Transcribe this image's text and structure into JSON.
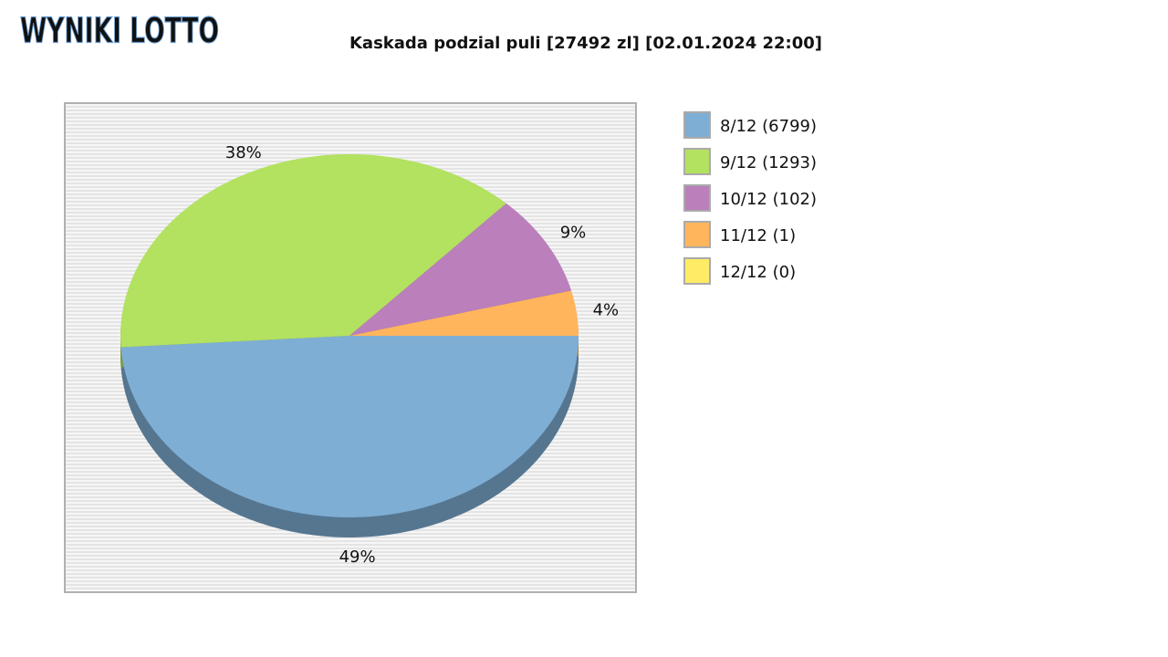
{
  "logo": "WYNIKI LOTTO",
  "chart_data": {
    "type": "pie",
    "title": "Kaskada podzial puli [27492 zl] [02.01.2024 22:00]",
    "categories": [
      "8/12 (6799)",
      "9/12 (1293)",
      "10/12 (102)",
      "11/12 (1)",
      "12/12 (0)"
    ],
    "values": [
      49,
      38,
      9,
      4,
      0
    ],
    "value_labels": [
      "49%",
      "38%",
      "9%",
      "4%",
      null
    ],
    "colors": [
      "#7eaed4",
      "#b3e160",
      "#bb7fbc",
      "#ffb55c",
      "#ffeb66"
    ],
    "legend": "right"
  }
}
